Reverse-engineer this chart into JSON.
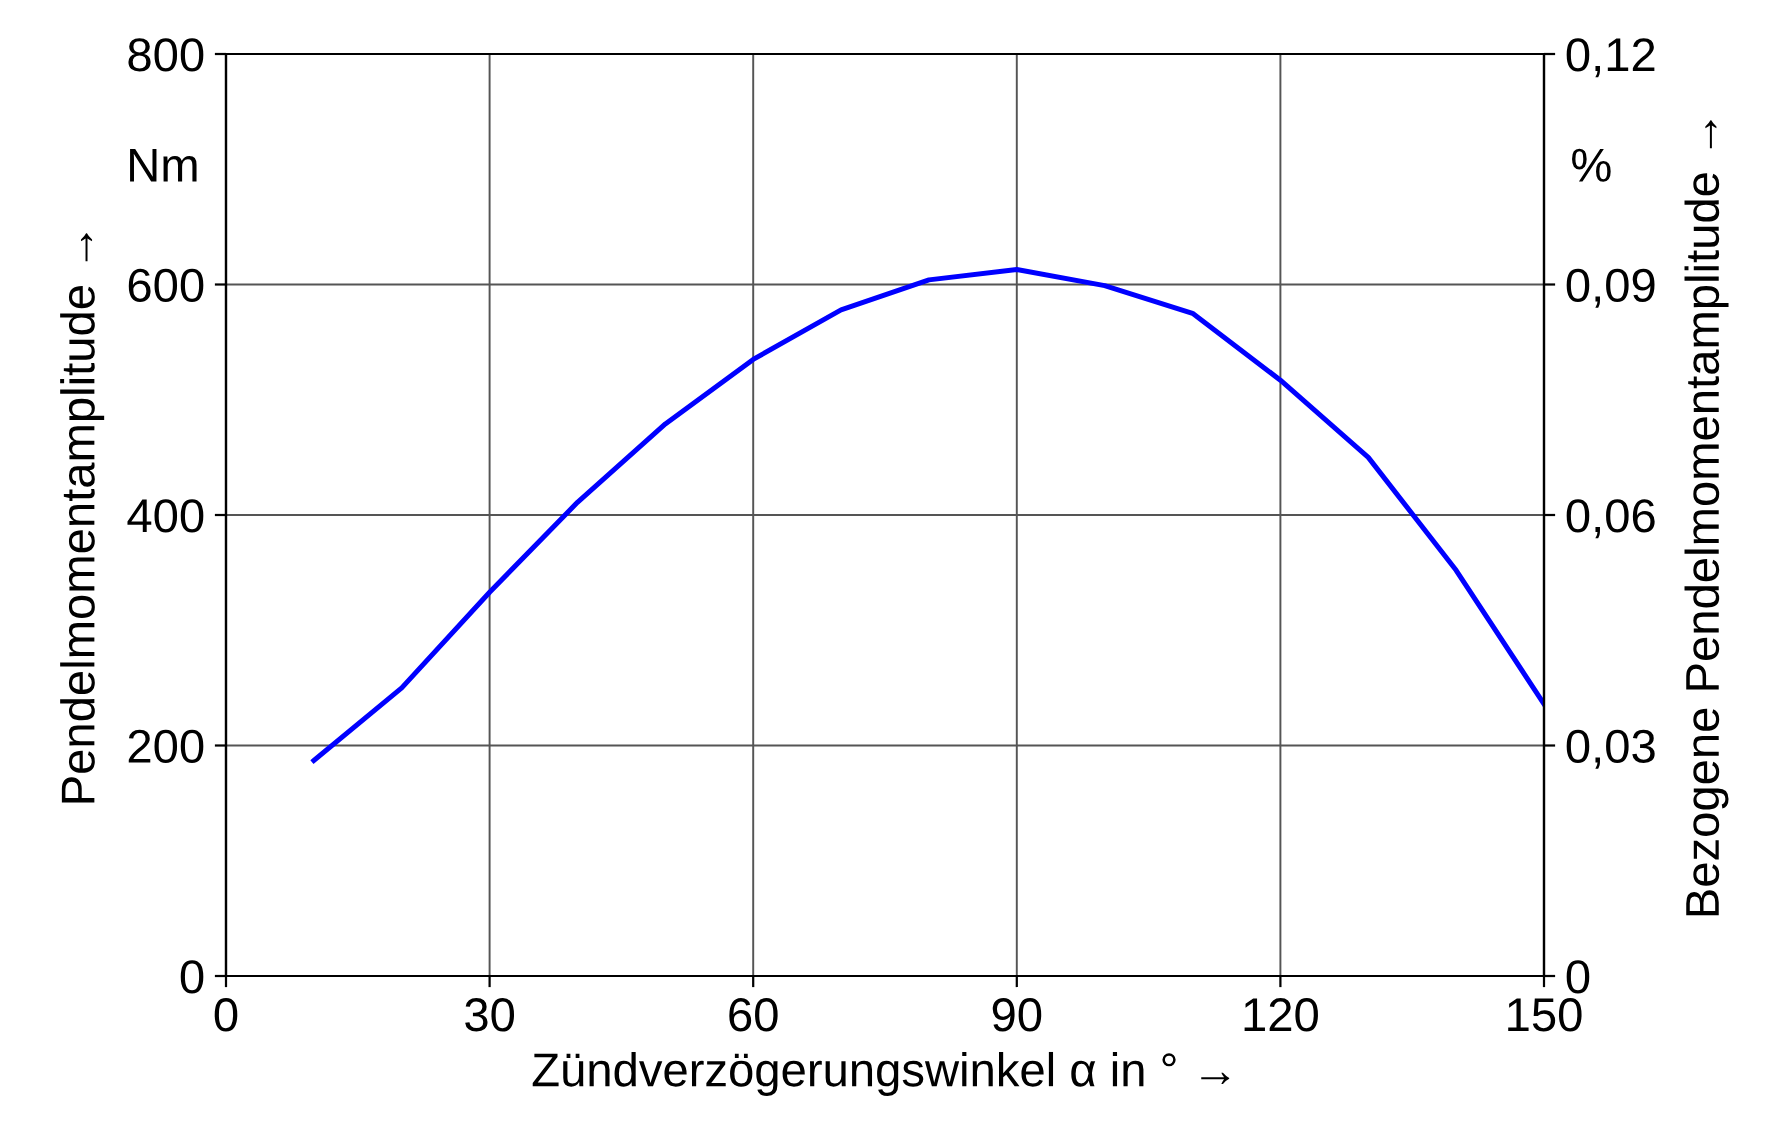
{
  "chart_data": {
    "type": "line",
    "xlabel": "Zündverzögerungswinkel α in ° →",
    "ylabel": "Pendelmomentamplitude →",
    "y2label": "Bezogene Pendelmomentamplitude →",
    "x": [
      10,
      20,
      30,
      40,
      50,
      60,
      70,
      80,
      90,
      100,
      110,
      120,
      130,
      140,
      150
    ],
    "series": [
      {
        "color": "#0000ff",
        "values": [
          187,
          250,
          333,
          411,
          479,
          535,
          578,
          604,
          613,
          599,
          575,
          517,
          450,
          352,
          236
        ]
      }
    ],
    "xlim": [
      0,
      150
    ],
    "xticks": [
      0,
      30,
      60,
      90,
      120,
      150
    ],
    "ylim": [
      0,
      800
    ],
    "yticks": [
      0,
      200,
      400,
      600,
      800
    ],
    "y2lim": [
      0,
      0.12
    ],
    "y2ticks": [
      0,
      {
        "value": 0.03,
        "label": "0,03"
      },
      {
        "value": 0.06,
        "label": "0,06"
      },
      {
        "value": 0.09,
        "label": "0,09"
      },
      {
        "value": 0.12,
        "label": "0,12"
      }
    ],
    "annotations": [
      "Nm",
      "%"
    ],
    "grid": true,
    "legend": false,
    "marker": "none",
    "line_style": "solid"
  }
}
